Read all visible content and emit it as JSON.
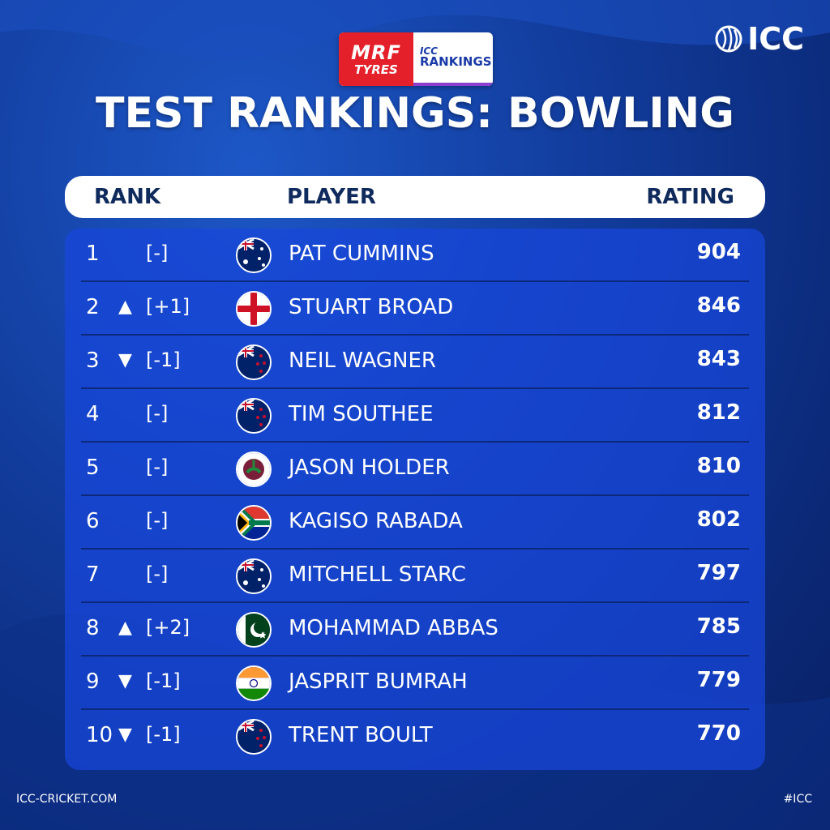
{
  "sponsor": {
    "brand_line1": "MRF",
    "brand_line2": "TYRES",
    "icc_line1": "ICC",
    "icc_line2": "RANKINGS"
  },
  "logo": {
    "text": "ICC",
    "icon": "icc-cricket-ball-icon"
  },
  "title": "TEST RANKINGS: BOWLING",
  "table": {
    "headers": {
      "rank": "RANK",
      "player": "PLAYER",
      "rating": "RATING"
    },
    "rows": [
      {
        "rank": "1",
        "arrow": "",
        "move": "[-]",
        "flag": "australia-flag-icon",
        "player": "PAT CUMMINS",
        "rating": "904"
      },
      {
        "rank": "2",
        "arrow": "▲",
        "move": "[+1]",
        "flag": "england-flag-icon",
        "player": "STUART BROAD",
        "rating": "846"
      },
      {
        "rank": "3",
        "arrow": "▼",
        "move": "[-1]",
        "flag": "new-zealand-flag-icon",
        "player": "NEIL WAGNER",
        "rating": "843"
      },
      {
        "rank": "4",
        "arrow": "",
        "move": "[-]",
        "flag": "new-zealand-flag-icon",
        "player": "TIM SOUTHEE",
        "rating": "812"
      },
      {
        "rank": "5",
        "arrow": "",
        "move": "[-]",
        "flag": "west-indies-flag-icon",
        "player": "JASON HOLDER",
        "rating": "810"
      },
      {
        "rank": "6",
        "arrow": "",
        "move": "[-]",
        "flag": "south-africa-flag-icon",
        "player": "KAGISO RABADA",
        "rating": "802"
      },
      {
        "rank": "7",
        "arrow": "",
        "move": "[-]",
        "flag": "australia-flag-icon",
        "player": "MITCHELL STARC",
        "rating": "797"
      },
      {
        "rank": "8",
        "arrow": "▲",
        "move": "[+2]",
        "flag": "pakistan-flag-icon",
        "player": "MOHAMMAD ABBAS",
        "rating": "785"
      },
      {
        "rank": "9",
        "arrow": "▼",
        "move": "[-1]",
        "flag": "india-flag-icon",
        "player": "JASPRIT BUMRAH",
        "rating": "779"
      },
      {
        "rank": "10",
        "arrow": "▼",
        "move": "[-1]",
        "flag": "new-zealand-flag-icon",
        "player": "TRENT BOULT",
        "rating": "770"
      }
    ]
  },
  "footer": {
    "left": "ICC-CRICKET.COM",
    "right": "#ICC"
  },
  "colors": {
    "background": "#123d9e",
    "panel": "#1846dc",
    "header_text": "#0f2a5c"
  }
}
